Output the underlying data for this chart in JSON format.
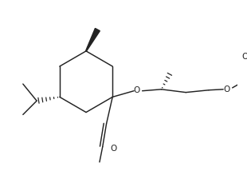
{
  "bg_color": "#ffffff",
  "line_color": "#222222",
  "line_width": 1.05,
  "figsize": [
    3.1,
    2.14
  ],
  "dpi": 100,
  "xlim": [
    0,
    310
  ],
  "ylim": [
    0,
    214
  ]
}
